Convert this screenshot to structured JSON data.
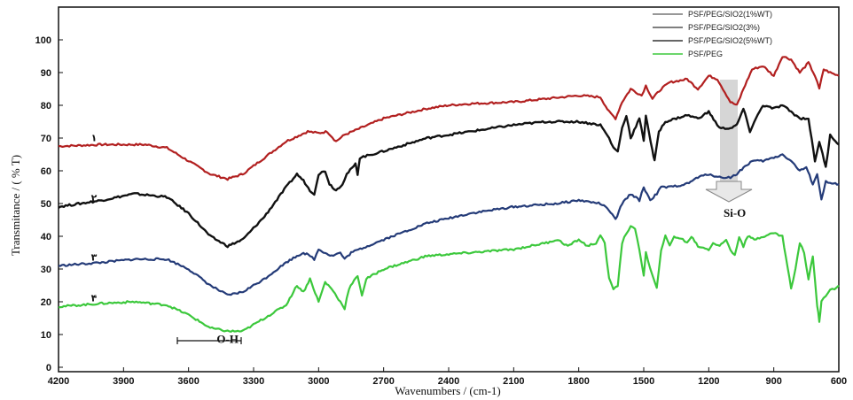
{
  "chart_data": {
    "type": "line",
    "xlabel": "Wavenumbers / (cm-1)",
    "ylabel": "Transmitance / ( % T)",
    "xlim": [
      4200,
      600
    ],
    "ylim": [
      0,
      100
    ],
    "x_ticks": [
      4200,
      3900,
      3600,
      3300,
      3000,
      2700,
      2400,
      2100,
      1800,
      1500,
      1200,
      900,
      600
    ],
    "y_ticks": [
      0,
      10,
      20,
      30,
      40,
      50,
      60,
      70,
      80,
      90,
      100
    ],
    "grid": false,
    "legend_position": "top-right",
    "series": [
      {
        "name": "PSF/PEG/SIO2(1%WT)",
        "label": "۱",
        "color": "#b22020",
        "legend_color": "#777777",
        "points": [
          [
            4200,
            67.5
          ],
          [
            4000,
            68
          ],
          [
            3800,
            68
          ],
          [
            3700,
            67
          ],
          [
            3600,
            63
          ],
          [
            3500,
            59
          ],
          [
            3420,
            57.5
          ],
          [
            3350,
            59
          ],
          [
            3250,
            64
          ],
          [
            3150,
            69
          ],
          [
            3050,
            72
          ],
          [
            3000,
            71.5
          ],
          [
            2960,
            72
          ],
          [
            2920,
            69
          ],
          [
            2880,
            71
          ],
          [
            2700,
            76
          ],
          [
            2500,
            79
          ],
          [
            2400,
            80
          ],
          [
            2300,
            80.5
          ],
          [
            2100,
            81
          ],
          [
            1950,
            82
          ],
          [
            1800,
            83
          ],
          [
            1700,
            82.5
          ],
          [
            1660,
            78
          ],
          [
            1630,
            76
          ],
          [
            1600,
            81
          ],
          [
            1560,
            85
          ],
          [
            1510,
            83
          ],
          [
            1490,
            86
          ],
          [
            1460,
            82
          ],
          [
            1420,
            85
          ],
          [
            1380,
            87
          ],
          [
            1300,
            88
          ],
          [
            1250,
            85
          ],
          [
            1200,
            89
          ],
          [
            1160,
            88
          ],
          [
            1100,
            81
          ],
          [
            1070,
            80
          ],
          [
            1040,
            85
          ],
          [
            1000,
            91
          ],
          [
            950,
            92
          ],
          [
            900,
            89
          ],
          [
            860,
            95
          ],
          [
            820,
            94
          ],
          [
            780,
            90
          ],
          [
            740,
            93
          ],
          [
            710,
            89
          ],
          [
            690,
            85
          ],
          [
            670,
            91
          ],
          [
            640,
            90
          ],
          [
            600,
            89
          ]
        ]
      },
      {
        "name": "PSF/PEG/SIO2(3%)",
        "label": "۲",
        "color": "#111111",
        "legend_color": "#555555",
        "points": [
          [
            4200,
            49
          ],
          [
            4000,
            51
          ],
          [
            3850,
            53
          ],
          [
            3700,
            52
          ],
          [
            3600,
            47
          ],
          [
            3500,
            40
          ],
          [
            3420,
            37
          ],
          [
            3350,
            39
          ],
          [
            3250,
            46
          ],
          [
            3150,
            55
          ],
          [
            3100,
            59
          ],
          [
            3070,
            57
          ],
          [
            3040,
            54
          ],
          [
            3020,
            53
          ],
          [
            3000,
            59
          ],
          [
            2970,
            60
          ],
          [
            2950,
            56
          ],
          [
            2920,
            54
          ],
          [
            2890,
            56
          ],
          [
            2870,
            59
          ],
          [
            2830,
            62
          ],
          [
            2820,
            59
          ],
          [
            2810,
            64
          ],
          [
            2700,
            66
          ],
          [
            2500,
            70
          ],
          [
            2300,
            72
          ],
          [
            2100,
            74
          ],
          [
            1950,
            75
          ],
          [
            1800,
            75
          ],
          [
            1700,
            74
          ],
          [
            1660,
            70
          ],
          [
            1640,
            67
          ],
          [
            1620,
            66
          ],
          [
            1600,
            73
          ],
          [
            1580,
            77
          ],
          [
            1560,
            70
          ],
          [
            1520,
            76
          ],
          [
            1500,
            69
          ],
          [
            1490,
            77
          ],
          [
            1460,
            66
          ],
          [
            1450,
            63
          ],
          [
            1430,
            72
          ],
          [
            1400,
            75
          ],
          [
            1300,
            77
          ],
          [
            1250,
            76
          ],
          [
            1200,
            78
          ],
          [
            1170,
            75
          ],
          [
            1150,
            73
          ],
          [
            1100,
            73
          ],
          [
            1070,
            74
          ],
          [
            1040,
            79
          ],
          [
            1010,
            72
          ],
          [
            990,
            75
          ],
          [
            950,
            80
          ],
          [
            900,
            79
          ],
          [
            860,
            80
          ],
          [
            820,
            78
          ],
          [
            780,
            76
          ],
          [
            740,
            76
          ],
          [
            710,
            63
          ],
          [
            690,
            69
          ],
          [
            660,
            61
          ],
          [
            640,
            71
          ],
          [
            600,
            68
          ]
        ]
      },
      {
        "name": "PSF/PEG/SIO2(5%WT)",
        "label": "۳",
        "color": "#243b78",
        "legend_color": "#333333",
        "points": [
          [
            4200,
            31
          ],
          [
            4000,
            32
          ],
          [
            3850,
            33
          ],
          [
            3700,
            33
          ],
          [
            3600,
            30
          ],
          [
            3500,
            25
          ],
          [
            3420,
            22
          ],
          [
            3350,
            23
          ],
          [
            3250,
            27
          ],
          [
            3150,
            32
          ],
          [
            3100,
            34
          ],
          [
            3070,
            35
          ],
          [
            3040,
            34
          ],
          [
            3020,
            33
          ],
          [
            3000,
            36
          ],
          [
            2970,
            35
          ],
          [
            2940,
            34
          ],
          [
            2900,
            35
          ],
          [
            2880,
            33
          ],
          [
            2850,
            35
          ],
          [
            2700,
            39
          ],
          [
            2500,
            44
          ],
          [
            2300,
            47
          ],
          [
            2100,
            49
          ],
          [
            1900,
            50
          ],
          [
            1800,
            51
          ],
          [
            1700,
            50
          ],
          [
            1660,
            48
          ],
          [
            1630,
            45
          ],
          [
            1600,
            50
          ],
          [
            1560,
            53
          ],
          [
            1520,
            51
          ],
          [
            1500,
            55
          ],
          [
            1470,
            51
          ],
          [
            1440,
            53
          ],
          [
            1420,
            55
          ],
          [
            1380,
            55
          ],
          [
            1300,
            56
          ],
          [
            1250,
            58
          ],
          [
            1200,
            59
          ],
          [
            1150,
            58
          ],
          [
            1100,
            58
          ],
          [
            1070,
            59
          ],
          [
            1040,
            61
          ],
          [
            1000,
            63
          ],
          [
            950,
            63
          ],
          [
            900,
            64
          ],
          [
            860,
            65
          ],
          [
            820,
            63
          ],
          [
            780,
            60
          ],
          [
            750,
            61
          ],
          [
            720,
            56
          ],
          [
            700,
            59
          ],
          [
            680,
            51
          ],
          [
            660,
            57
          ],
          [
            640,
            56
          ],
          [
            600,
            56
          ]
        ]
      },
      {
        "name": "PSF/PEG",
        "label": "۴",
        "color": "#3cc83c",
        "legend_color": "#3cc83c",
        "points": [
          [
            4200,
            18.5
          ],
          [
            4000,
            19.5
          ],
          [
            3850,
            20
          ],
          [
            3700,
            19
          ],
          [
            3600,
            16
          ],
          [
            3500,
            12
          ],
          [
            3420,
            11
          ],
          [
            3350,
            11
          ],
          [
            3300,
            13
          ],
          [
            3200,
            17
          ],
          [
            3150,
            19
          ],
          [
            3100,
            25
          ],
          [
            3070,
            23
          ],
          [
            3040,
            27
          ],
          [
            3000,
            20
          ],
          [
            2970,
            26
          ],
          [
            2940,
            24
          ],
          [
            2900,
            20
          ],
          [
            2880,
            18
          ],
          [
            2860,
            24
          ],
          [
            2820,
            28
          ],
          [
            2800,
            22
          ],
          [
            2780,
            27
          ],
          [
            2700,
            30
          ],
          [
            2500,
            34
          ],
          [
            2300,
            35
          ],
          [
            2100,
            36
          ],
          [
            1950,
            38
          ],
          [
            1900,
            39
          ],
          [
            1850,
            37
          ],
          [
            1800,
            39
          ],
          [
            1760,
            37
          ],
          [
            1720,
            38
          ],
          [
            1700,
            40
          ],
          [
            1680,
            38
          ],
          [
            1660,
            27
          ],
          [
            1640,
            24
          ],
          [
            1620,
            25
          ],
          [
            1600,
            38
          ],
          [
            1580,
            41
          ],
          [
            1560,
            43
          ],
          [
            1540,
            42
          ],
          [
            1520,
            36
          ],
          [
            1500,
            28
          ],
          [
            1490,
            35
          ],
          [
            1470,
            30
          ],
          [
            1440,
            24
          ],
          [
            1420,
            36
          ],
          [
            1400,
            40
          ],
          [
            1380,
            37
          ],
          [
            1360,
            40
          ],
          [
            1320,
            39
          ],
          [
            1300,
            38
          ],
          [
            1280,
            40
          ],
          [
            1250,
            37
          ],
          [
            1200,
            36
          ],
          [
            1180,
            38
          ],
          [
            1150,
            37
          ],
          [
            1120,
            39
          ],
          [
            1100,
            36
          ],
          [
            1080,
            34
          ],
          [
            1060,
            40
          ],
          [
            1040,
            37
          ],
          [
            1020,
            40
          ],
          [
            990,
            39
          ],
          [
            950,
            40
          ],
          [
            900,
            41
          ],
          [
            860,
            40
          ],
          [
            820,
            24
          ],
          [
            800,
            30
          ],
          [
            780,
            38
          ],
          [
            760,
            35
          ],
          [
            740,
            27
          ],
          [
            720,
            34
          ],
          [
            700,
            19
          ],
          [
            690,
            14
          ],
          [
            680,
            20
          ],
          [
            660,
            22
          ],
          [
            640,
            24
          ],
          [
            620,
            24
          ],
          [
            600,
            25
          ]
        ]
      }
    ],
    "annotations": [
      {
        "text": "O-H",
        "x": 3420,
        "y": 7.5
      },
      {
        "text": "Si-O",
        "x": 1080,
        "y": 46
      }
    ]
  }
}
